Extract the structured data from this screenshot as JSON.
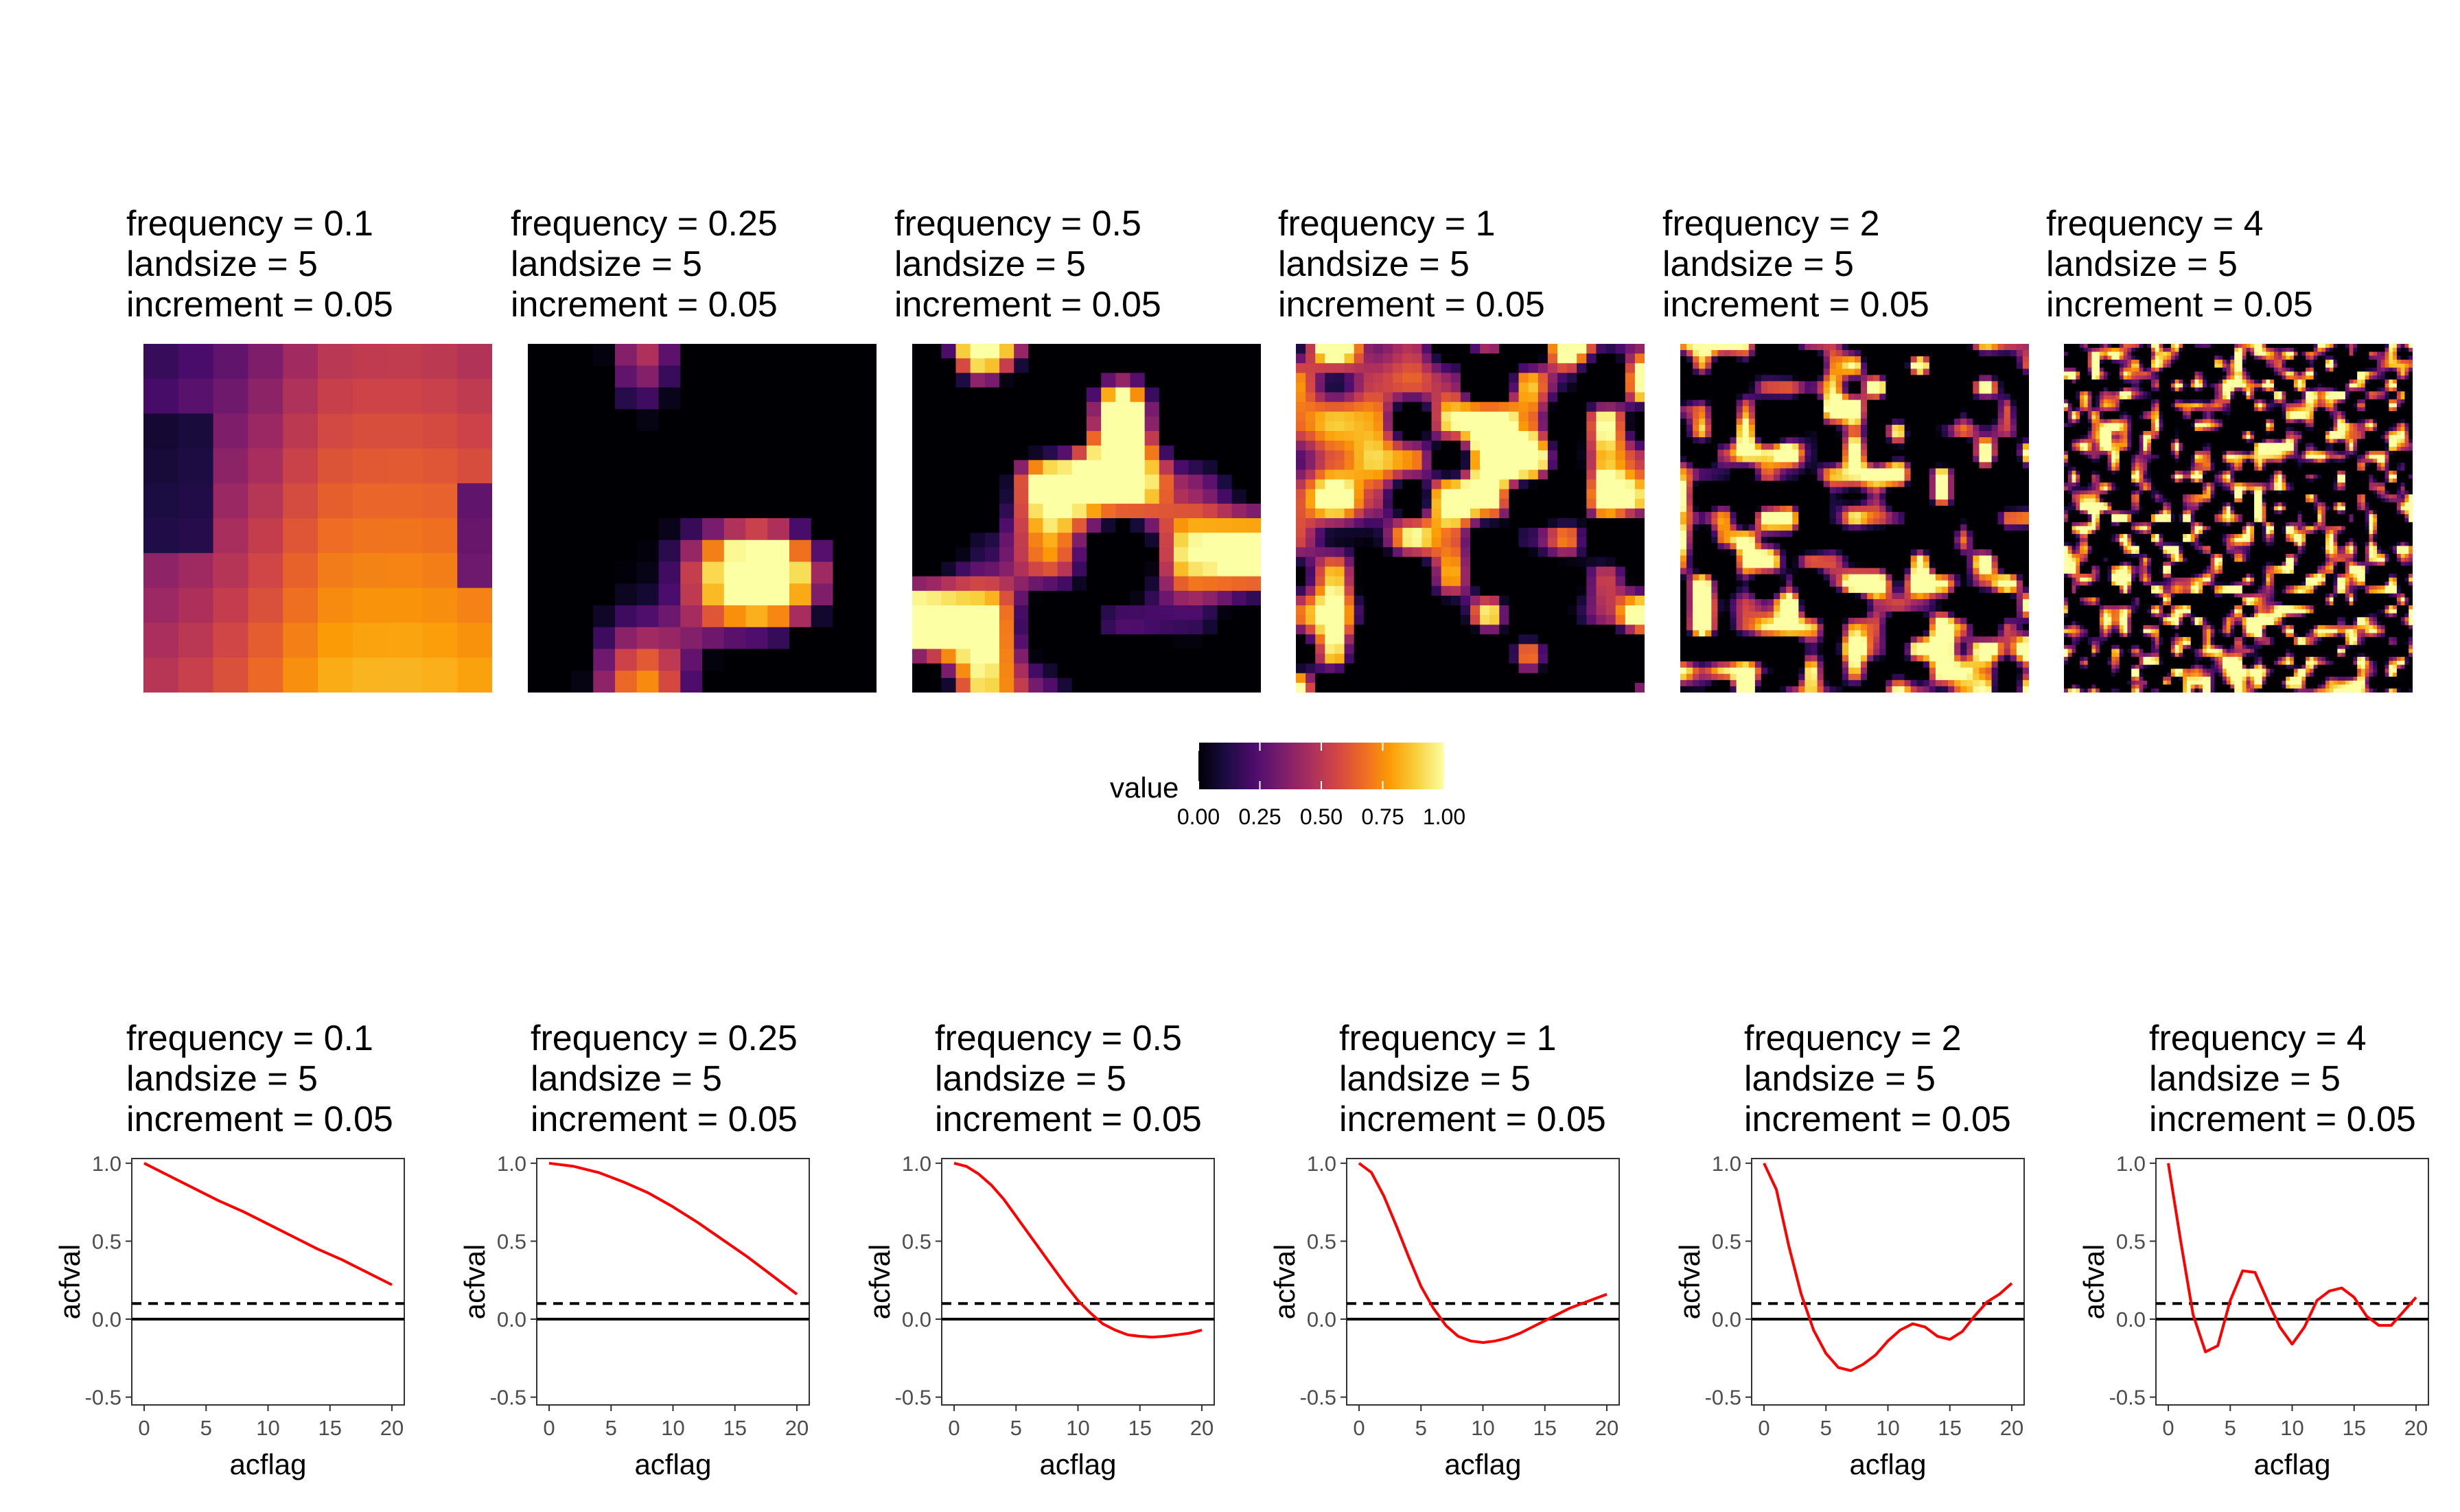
{
  "top_panels": [
    {
      "title": [
        "frequency = 0.1",
        "landsize = 5",
        "increment = 0.05"
      ]
    },
    {
      "title": [
        "frequency = 0.25",
        "landsize = 5",
        "increment = 0.05"
      ]
    },
    {
      "title": [
        "frequency = 0.5",
        "landsize = 5",
        "increment = 0.05"
      ]
    },
    {
      "title": [
        "frequency = 1",
        "landsize = 5",
        "increment = 0.05"
      ]
    },
    {
      "title": [
        "frequency = 2",
        "landsize = 5",
        "increment = 0.05"
      ]
    },
    {
      "title": [
        "frequency = 4",
        "landsize = 5",
        "increment = 0.05"
      ]
    }
  ],
  "legend": {
    "title": "value",
    "ticks": [
      "0.00",
      "0.25",
      "0.50",
      "0.75",
      "1.00"
    ],
    "colormap": [
      "#000004",
      "#1b0c41",
      "#4a0c6b",
      "#781c6d",
      "#a52c60",
      "#cf4446",
      "#ed6925",
      "#fb9b06",
      "#f7d13d",
      "#fcffa4"
    ]
  },
  "chart_data": [
    {
      "type": "line",
      "title": [
        "frequency = 0.1",
        "landsize = 5",
        "increment = 0.05"
      ],
      "xlabel": "acflag",
      "ylabel": "acfval",
      "xlim": [
        -1,
        21
      ],
      "ylim": [
        -0.55,
        1.03
      ],
      "xticks": [
        "0",
        "5",
        "10",
        "15",
        "20"
      ],
      "yticks": [
        "-0.5",
        "0.0",
        "0.5",
        "1.0"
      ],
      "hlines": {
        "solid": 0.0,
        "dashed": 0.1
      },
      "line_color": "#ff0000",
      "x": [
        0,
        2,
        4,
        6,
        8,
        10,
        12,
        14,
        16,
        18,
        20
      ],
      "y": [
        1.0,
        0.92,
        0.84,
        0.76,
        0.69,
        0.61,
        0.53,
        0.45,
        0.38,
        0.3,
        0.22
      ]
    },
    {
      "type": "line",
      "title": [
        "frequency = 0.25",
        "landsize = 5",
        "increment = 0.05"
      ],
      "xlabel": "acflag",
      "ylabel": "acfval",
      "xlim": [
        -1,
        21
      ],
      "ylim": [
        -0.55,
        1.03
      ],
      "xticks": [
        "0",
        "5",
        "10",
        "15",
        "20"
      ],
      "yticks": [
        "-0.5",
        "0.0",
        "0.5",
        "1.0"
      ],
      "hlines": {
        "solid": 0.0,
        "dashed": 0.1
      },
      "line_color": "#ff0000",
      "x": [
        0,
        2,
        4,
        6,
        8,
        10,
        12,
        14,
        16,
        18,
        20
      ],
      "y": [
        1.0,
        0.98,
        0.94,
        0.88,
        0.81,
        0.72,
        0.62,
        0.51,
        0.4,
        0.28,
        0.16
      ]
    },
    {
      "type": "line",
      "title": [
        "frequency = 0.5",
        "landsize = 5",
        "increment = 0.05"
      ],
      "xlabel": "acflag",
      "ylabel": "acfval",
      "xlim": [
        -1,
        21
      ],
      "ylim": [
        -0.55,
        1.03
      ],
      "xticks": [
        "0",
        "5",
        "10",
        "15",
        "20"
      ],
      "yticks": [
        "-0.5",
        "0.0",
        "0.5",
        "1.0"
      ],
      "hlines": {
        "solid": 0.0,
        "dashed": 0.1
      },
      "line_color": "#ff0000",
      "x": [
        0,
        1,
        2,
        3,
        4,
        5,
        6,
        7,
        8,
        9,
        10,
        11,
        12,
        13,
        14,
        15,
        16,
        17,
        18,
        19,
        20
      ],
      "y": [
        1.0,
        0.98,
        0.93,
        0.86,
        0.77,
        0.66,
        0.55,
        0.44,
        0.33,
        0.22,
        0.12,
        0.04,
        -0.03,
        -0.07,
        -0.1,
        -0.11,
        -0.115,
        -0.11,
        -0.1,
        -0.09,
        -0.07
      ]
    },
    {
      "type": "line",
      "title": [
        "frequency = 1",
        "landsize = 5",
        "increment = 0.05"
      ],
      "xlabel": "acflag",
      "ylabel": "acfval",
      "xlim": [
        -1,
        21
      ],
      "ylim": [
        -0.55,
        1.03
      ],
      "xticks": [
        "0",
        "5",
        "10",
        "15",
        "20"
      ],
      "yticks": [
        "-0.5",
        "0.0",
        "0.5",
        "1.0"
      ],
      "hlines": {
        "solid": 0.0,
        "dashed": 0.1
      },
      "line_color": "#ff0000",
      "x": [
        0,
        1,
        2,
        3,
        4,
        5,
        6,
        7,
        8,
        9,
        10,
        11,
        12,
        13,
        14,
        15,
        16,
        17,
        18,
        19,
        20
      ],
      "y": [
        1.0,
        0.94,
        0.79,
        0.6,
        0.4,
        0.21,
        0.07,
        -0.04,
        -0.11,
        -0.14,
        -0.15,
        -0.14,
        -0.12,
        -0.09,
        -0.05,
        -0.01,
        0.03,
        0.07,
        0.1,
        0.13,
        0.16
      ]
    },
    {
      "type": "line",
      "title": [
        "frequency = 2",
        "landsize = 5",
        "increment = 0.05"
      ],
      "xlabel": "acflag",
      "ylabel": "acfval",
      "xlim": [
        -1,
        21
      ],
      "ylim": [
        -0.55,
        1.03
      ],
      "xticks": [
        "0",
        "5",
        "10",
        "15",
        "20"
      ],
      "yticks": [
        "-0.5",
        "0.0",
        "0.5",
        "1.0"
      ],
      "hlines": {
        "solid": 0.0,
        "dashed": 0.1
      },
      "line_color": "#ff0000",
      "x": [
        0,
        1,
        2,
        3,
        4,
        5,
        6,
        7,
        8,
        9,
        10,
        11,
        12,
        13,
        14,
        15,
        16,
        17,
        18,
        19,
        20
      ],
      "y": [
        1.0,
        0.83,
        0.47,
        0.16,
        -0.07,
        -0.22,
        -0.31,
        -0.33,
        -0.29,
        -0.23,
        -0.14,
        -0.07,
        -0.03,
        -0.05,
        -0.11,
        -0.13,
        -0.08,
        0.02,
        0.11,
        0.16,
        0.23
      ]
    },
    {
      "type": "line",
      "title": [
        "frequency = 4",
        "landsize = 5",
        "increment = 0.05"
      ],
      "xlabel": "acflag",
      "ylabel": "acfval",
      "xlim": [
        -1,
        21
      ],
      "ylim": [
        -0.55,
        1.03
      ],
      "xticks": [
        "0",
        "5",
        "10",
        "15",
        "20"
      ],
      "yticks": [
        "-0.5",
        "0.0",
        "0.5",
        "1.0"
      ],
      "hlines": {
        "solid": 0.0,
        "dashed": 0.1
      },
      "line_color": "#ff0000",
      "x": [
        0,
        1,
        2,
        3,
        4,
        5,
        6,
        7,
        8,
        9,
        10,
        11,
        12,
        13,
        14,
        15,
        16,
        17,
        18,
        19,
        20
      ],
      "y": [
        1.0,
        0.5,
        0.03,
        -0.21,
        -0.17,
        0.12,
        0.31,
        0.3,
        0.12,
        -0.05,
        -0.16,
        -0.05,
        0.12,
        0.18,
        0.2,
        0.14,
        0.02,
        -0.04,
        -0.04,
        0.05,
        0.14
      ]
    }
  ]
}
